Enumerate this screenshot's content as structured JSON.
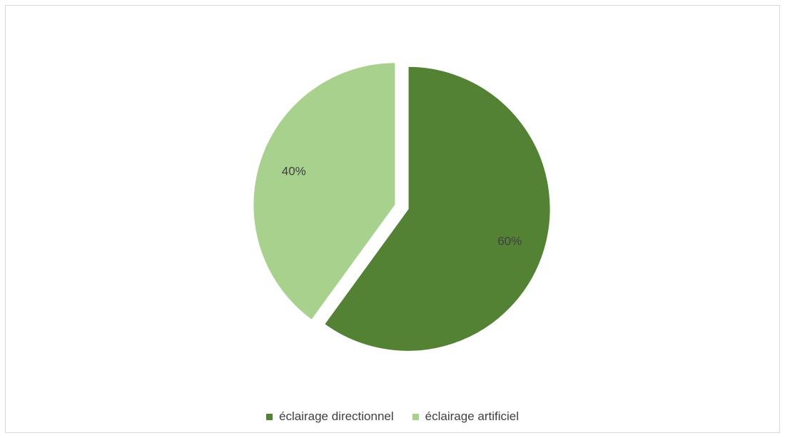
{
  "chart_data": {
    "type": "pie",
    "categories": [
      "éclairage directionnel",
      "éclairage artificiel"
    ],
    "values": [
      60,
      40
    ],
    "labels": [
      "60%",
      "40%"
    ],
    "colors": [
      "#548235",
      "#a9d18e"
    ],
    "legend_position": "bottom",
    "exploded": true
  }
}
